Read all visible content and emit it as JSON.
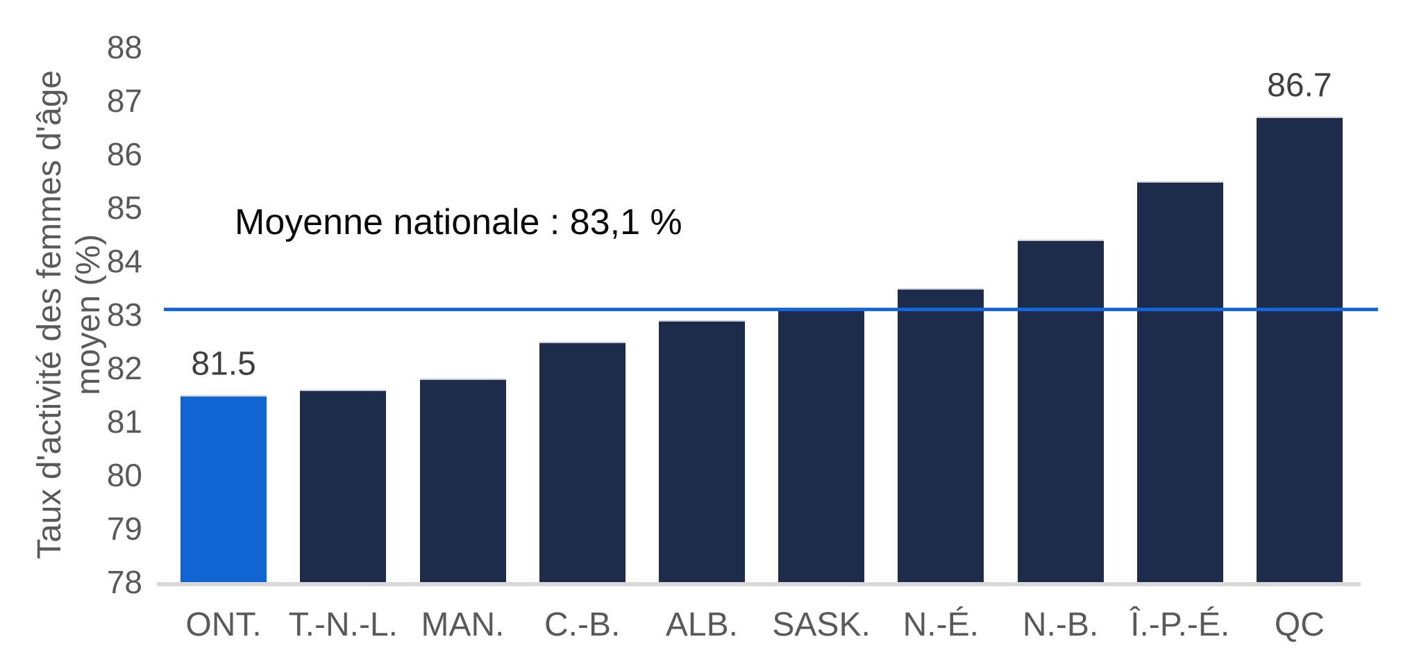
{
  "chart_data": {
    "type": "bar",
    "title": "",
    "categories": [
      "ONT.",
      "T.-N.-L.",
      "MAN.",
      "C.-B.",
      "ALB.",
      "SASK.",
      "N.-É.",
      "N.-B.",
      "Î.-P.-É.",
      "QC"
    ],
    "values": [
      81.5,
      81.6,
      81.8,
      82.5,
      82.9,
      83.1,
      83.5,
      84.4,
      85.5,
      86.7
    ],
    "bar_data_labels": [
      "81.5",
      "",
      "",
      "",
      "",
      "",
      "",
      "",
      "",
      "86.7"
    ],
    "highlight_category": "ONT.",
    "ylabel_line1": "Taux d'activité des femmes d'âge",
    "ylabel_line2": "moyen (%)",
    "ylim": [
      78,
      88
    ],
    "yticks": [
      88,
      87,
      86,
      85,
      84,
      83,
      82,
      81,
      80,
      79,
      78
    ],
    "grid": false,
    "legend": false,
    "reference_line": {
      "value": 83.1,
      "label": "Moyenne nationale : 83,1 %",
      "color": "#1565dd"
    },
    "colors": {
      "bar": "#1d2c4a",
      "highlight_bar": "#1065d3",
      "axis_text": "#595959",
      "data_label_text": "#3f3f3f",
      "annotation_text": "#0a0a0a",
      "baseline": "#d9d9d9"
    }
  }
}
